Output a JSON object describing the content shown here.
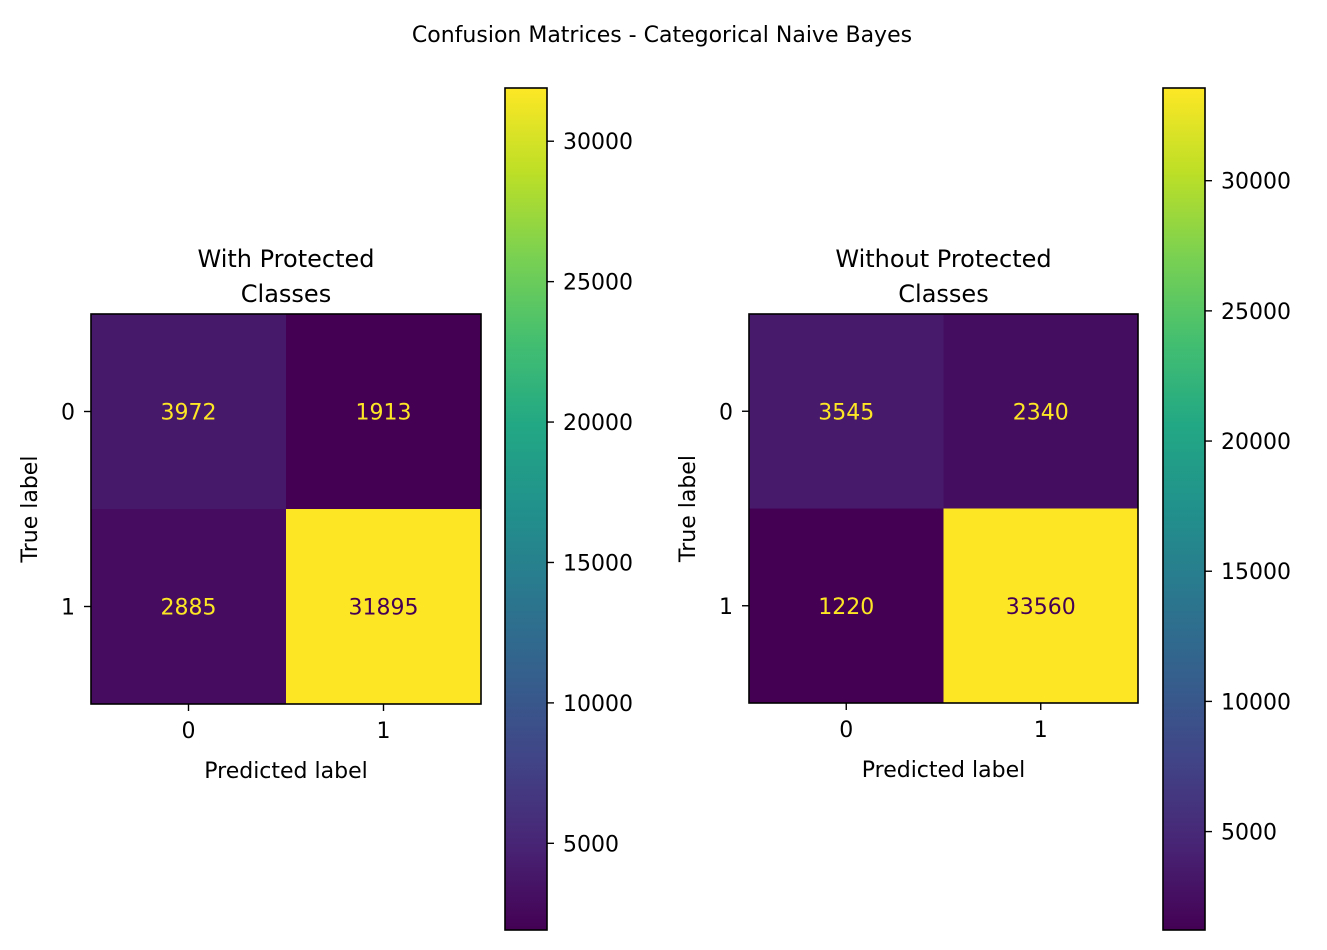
{
  "figure": {
    "suptitle": "Confusion Matrices - Categorical Naive Bayes"
  },
  "chart_data": [
    {
      "type": "heatmap",
      "title": "With Protected\nClasses",
      "xlabel": "Predicted label",
      "ylabel": "True label",
      "x_categories": [
        "0",
        "1"
      ],
      "y_categories": [
        "0",
        "1"
      ],
      "matrix": [
        [
          3972,
          1913
        ],
        [
          2885,
          31895
        ]
      ],
      "colormap": "viridis",
      "colorbar": {
        "min": 1913,
        "max": 31895,
        "ticks": [
          5000,
          10000,
          15000,
          20000,
          25000,
          30000
        ],
        "tick_labels": [
          "5000",
          "10000",
          "15000",
          "20000",
          "25000",
          "30000"
        ]
      },
      "text_colors": {
        "on_dark": "#fde725",
        "on_light": "#440154"
      }
    },
    {
      "type": "heatmap",
      "title": "Without Protected\nClasses",
      "xlabel": "Predicted label",
      "ylabel": "True label",
      "x_categories": [
        "0",
        "1"
      ],
      "y_categories": [
        "0",
        "1"
      ],
      "matrix": [
        [
          3545,
          2340
        ],
        [
          1220,
          33560
        ]
      ],
      "colormap": "viridis",
      "colorbar": {
        "min": 1220,
        "max": 33560,
        "ticks": [
          5000,
          10000,
          15000,
          20000,
          25000,
          30000
        ],
        "tick_labels": [
          "5000",
          "10000",
          "15000",
          "20000",
          "25000",
          "30000"
        ]
      },
      "text_colors": {
        "on_dark": "#fde725",
        "on_light": "#440154"
      }
    }
  ]
}
